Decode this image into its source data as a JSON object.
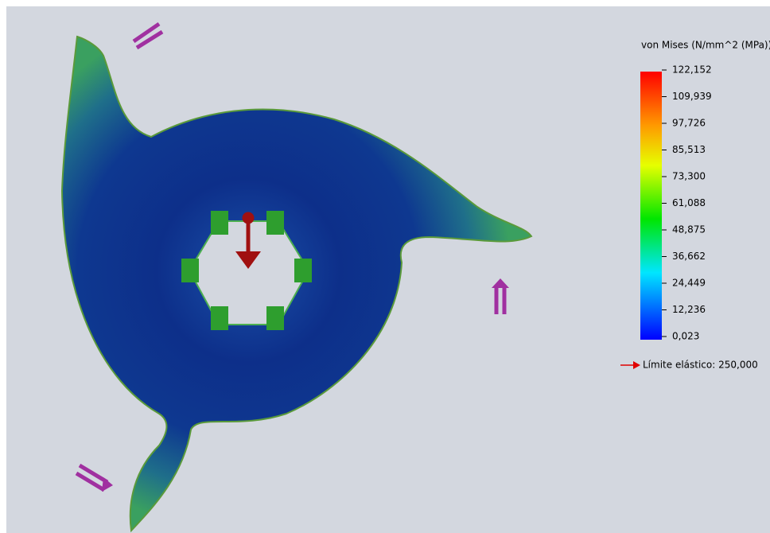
{
  "legend": {
    "title": "von Mises (N/mm^2 (MPa))",
    "labels": [
      "122,152",
      "109,939",
      "97,726",
      "85,513",
      "73,300",
      "61,088",
      "48,875",
      "36,662",
      "24,449",
      "12,236",
      "0,023"
    ],
    "yield": "Límite elástico: 250,000"
  }
}
